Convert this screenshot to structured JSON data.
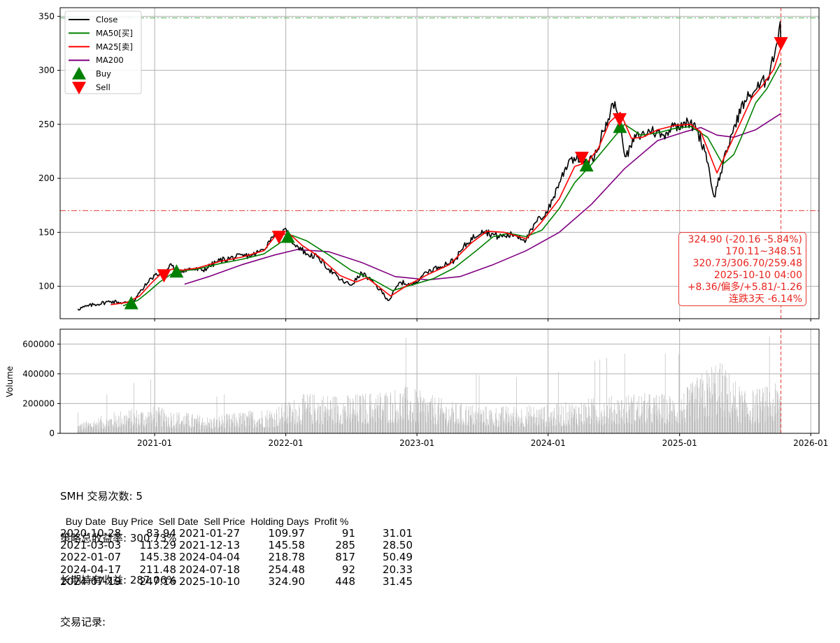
{
  "chart_data": {
    "type": "line",
    "ticker": "SMH",
    "price_panel": {
      "ylim": [
        70,
        358
      ],
      "yticks": [
        100,
        150,
        200,
        250,
        300,
        350
      ],
      "grid": true,
      "legend_placement": "top-left",
      "legend": [
        "Close",
        "MA50[买]",
        "MA25[卖]",
        "MA200",
        "Buy",
        "Sell"
      ],
      "colors": {
        "close": "#000000",
        "ma50": "#008000",
        "ma25": "#ff0000",
        "ma200": "#800080",
        "buy": "#008000",
        "sell": "#ff0000",
        "hline": "#e53935"
      },
      "series": [
        {
          "name": "Close",
          "points": [
            [
              "2020-06-01",
              79
            ],
            [
              "2020-07-15",
              83
            ],
            [
              "2020-09-01",
              86
            ],
            [
              "2020-10-28",
              84
            ],
            [
              "2020-11-20",
              94
            ],
            [
              "2020-12-15",
              104
            ],
            [
              "2021-01-05",
              112
            ],
            [
              "2021-01-27",
              110
            ],
            [
              "2021-02-15",
              121
            ],
            [
              "2021-03-03",
              113
            ],
            [
              "2021-04-01",
              116
            ],
            [
              "2021-05-15",
              115
            ],
            [
              "2021-07-01",
              124
            ],
            [
              "2021-08-15",
              127
            ],
            [
              "2021-10-01",
              129
            ],
            [
              "2021-11-01",
              134
            ],
            [
              "2021-11-15",
              142
            ],
            [
              "2021-12-01",
              150
            ],
            [
              "2021-12-13",
              146
            ],
            [
              "2022-01-03",
              152
            ],
            [
              "2022-01-07",
              145
            ],
            [
              "2022-02-01",
              138
            ],
            [
              "2022-03-01",
              130
            ],
            [
              "2022-04-01",
              127
            ],
            [
              "2022-05-01",
              116
            ],
            [
              "2022-06-01",
              106
            ],
            [
              "2022-07-01",
              101
            ],
            [
              "2022-08-01",
              112
            ],
            [
              "2022-09-01",
              104
            ],
            [
              "2022-10-15",
              87
            ],
            [
              "2022-11-15",
              104
            ],
            [
              "2022-12-20",
              101
            ],
            [
              "2023-01-20",
              112
            ],
            [
              "2023-03-01",
              118
            ],
            [
              "2023-04-15",
              124
            ],
            [
              "2023-05-20",
              140
            ],
            [
              "2023-07-01",
              152
            ],
            [
              "2023-08-15",
              146
            ],
            [
              "2023-10-01",
              148
            ],
            [
              "2023-11-01",
              143
            ],
            [
              "2023-12-01",
              160
            ],
            [
              "2024-01-01",
              170
            ],
            [
              "2024-02-01",
              196
            ],
            [
              "2024-03-01",
              218
            ],
            [
              "2024-04-04",
              219
            ],
            [
              "2024-04-17",
              211
            ],
            [
              "2024-05-15",
              224
            ],
            [
              "2024-06-10",
              252
            ],
            [
              "2024-07-05",
              271
            ],
            [
              "2024-07-18",
              254
            ],
            [
              "2024-07-19",
              247
            ],
            [
              "2024-08-05",
              220
            ],
            [
              "2024-09-01",
              238
            ],
            [
              "2024-10-15",
              244
            ],
            [
              "2024-11-15",
              240
            ],
            [
              "2024-12-15",
              248
            ],
            [
              "2025-01-15",
              252
            ],
            [
              "2025-02-15",
              247
            ],
            [
              "2025-03-15",
              224
            ],
            [
              "2025-04-07",
              183
            ],
            [
              "2025-05-01",
              212
            ],
            [
              "2025-06-01",
              248
            ],
            [
              "2025-07-01",
              272
            ],
            [
              "2025-08-01",
              282
            ],
            [
              "2025-09-01",
              292
            ],
            [
              "2025-09-25",
              320
            ],
            [
              "2025-10-08",
              345
            ],
            [
              "2025-10-10",
              324.9
            ]
          ]
        },
        {
          "name": "MA50[买]",
          "points": [
            [
              "2020-10-05",
              82
            ],
            [
              "2020-11-15",
              87
            ],
            [
              "2020-12-15",
              95
            ],
            [
              "2021-01-15",
              104
            ],
            [
              "2021-02-15",
              111
            ],
            [
              "2021-03-15",
              114
            ],
            [
              "2021-05-01",
              116
            ],
            [
              "2021-07-01",
              121
            ],
            [
              "2021-09-01",
              125
            ],
            [
              "2021-11-01",
              130
            ],
            [
              "2021-12-15",
              140
            ],
            [
              "2022-01-20",
              147
            ],
            [
              "2022-03-01",
              142
            ],
            [
              "2022-05-01",
              129
            ],
            [
              "2022-07-01",
              115
            ],
            [
              "2022-09-01",
              106
            ],
            [
              "2022-10-25",
              96
            ],
            [
              "2022-12-15",
              101
            ],
            [
              "2023-02-15",
              107
            ],
            [
              "2023-04-15",
              117
            ],
            [
              "2023-06-15",
              133
            ],
            [
              "2023-08-01",
              146
            ],
            [
              "2023-09-15",
              149
            ],
            [
              "2023-11-01",
              146
            ],
            [
              "2023-12-15",
              152
            ],
            [
              "2024-02-01",
              172
            ],
            [
              "2024-03-15",
              196
            ],
            [
              "2024-05-01",
              213
            ],
            [
              "2024-06-15",
              231
            ],
            [
              "2024-08-01",
              250
            ],
            [
              "2024-09-15",
              240
            ],
            [
              "2024-11-01",
              242
            ],
            [
              "2024-12-15",
              246
            ],
            [
              "2025-02-01",
              248
            ],
            [
              "2025-03-20",
              238
            ],
            [
              "2025-05-01",
              213
            ],
            [
              "2025-06-01",
              222
            ],
            [
              "2025-07-01",
              245
            ],
            [
              "2025-08-01",
              270
            ],
            [
              "2025-09-01",
              283
            ],
            [
              "2025-10-10",
              307
            ]
          ]
        },
        {
          "name": "MA25[卖]",
          "points": [
            [
              "2020-09-01",
              83
            ],
            [
              "2020-10-15",
              85
            ],
            [
              "2020-11-20",
              91
            ],
            [
              "2020-12-20",
              102
            ],
            [
              "2021-01-20",
              112
            ],
            [
              "2021-02-20",
              116
            ],
            [
              "2021-03-20",
              115
            ],
            [
              "2021-05-01",
              117
            ],
            [
              "2021-07-01",
              123
            ],
            [
              "2021-09-01",
              127
            ],
            [
              "2021-11-01",
              133
            ],
            [
              "2021-12-01",
              146
            ],
            [
              "2022-01-10",
              149
            ],
            [
              "2022-02-15",
              138
            ],
            [
              "2022-04-01",
              128
            ],
            [
              "2022-06-01",
              110
            ],
            [
              "2022-07-15",
              104
            ],
            [
              "2022-08-15",
              108
            ],
            [
              "2022-10-20",
              91
            ],
            [
              "2022-12-01",
              100
            ],
            [
              "2023-02-01",
              111
            ],
            [
              "2023-04-01",
              120
            ],
            [
              "2023-06-01",
              140
            ],
            [
              "2023-07-15",
              151
            ],
            [
              "2023-09-01",
              150
            ],
            [
              "2023-11-01",
              144
            ],
            [
              "2023-12-15",
              160
            ],
            [
              "2024-02-01",
              181
            ],
            [
              "2024-03-15",
              211
            ],
            [
              "2024-04-20",
              215
            ],
            [
              "2024-05-20",
              228
            ],
            [
              "2024-06-20",
              252
            ],
            [
              "2024-07-20",
              261
            ],
            [
              "2024-08-20",
              237
            ],
            [
              "2024-09-20",
              238
            ],
            [
              "2024-11-01",
              245
            ],
            [
              "2024-12-20",
              249
            ],
            [
              "2025-02-01",
              250
            ],
            [
              "2025-03-01",
              243
            ],
            [
              "2025-04-15",
              205
            ],
            [
              "2025-05-20",
              230
            ],
            [
              "2025-06-20",
              252
            ],
            [
              "2025-07-20",
              274
            ],
            [
              "2025-08-20",
              286
            ],
            [
              "2025-09-20",
              301
            ],
            [
              "2025-10-10",
              321
            ]
          ]
        },
        {
          "name": "MA200",
          "points": [
            [
              "2021-03-25",
              102
            ],
            [
              "2021-06-01",
              109
            ],
            [
              "2021-09-01",
              120
            ],
            [
              "2021-12-01",
              129
            ],
            [
              "2022-02-01",
              134
            ],
            [
              "2022-05-01",
              132
            ],
            [
              "2022-08-01",
              122
            ],
            [
              "2022-11-01",
              109
            ],
            [
              "2023-02-01",
              106
            ],
            [
              "2023-05-01",
              109
            ],
            [
              "2023-08-01",
              120
            ],
            [
              "2023-11-01",
              133
            ],
            [
              "2024-02-01",
              150
            ],
            [
              "2024-05-01",
              176
            ],
            [
              "2024-08-01",
              209
            ],
            [
              "2024-11-01",
              235
            ],
            [
              "2025-01-15",
              243
            ],
            [
              "2025-03-01",
              247
            ],
            [
              "2025-04-15",
              240
            ],
            [
              "2025-06-01",
              238
            ],
            [
              "2025-08-01",
              245
            ],
            [
              "2025-10-10",
              260
            ]
          ]
        }
      ],
      "buy_signals": [
        [
          "2020-10-28",
          83.94
        ],
        [
          "2021-03-03",
          113.29
        ],
        [
          "2022-01-07",
          145.38
        ],
        [
          "2024-04-17",
          211.48
        ],
        [
          "2024-07-19",
          247.16
        ]
      ],
      "sell_signals": [
        [
          "2021-01-27",
          109.97
        ],
        [
          "2021-12-13",
          145.58
        ],
        [
          "2024-04-04",
          218.78
        ],
        [
          "2024-07-18",
          254.48
        ],
        [
          "2025-10-10",
          324.9
        ]
      ],
      "hlines": [
        {
          "value": 348.51,
          "color": "#4caf50",
          "style": "dashdot"
        },
        {
          "value": 170.11,
          "color": "#e53935",
          "style": "dashdot"
        }
      ],
      "vline_date": "2025-10-10"
    },
    "volume_panel": {
      "ylabel": "Volume",
      "ylim": [
        0,
        700000
      ],
      "yticks": [
        0,
        200000,
        400000,
        600000
      ],
      "ytick_labels": [
        "0",
        "200000",
        "400000",
        "600000"
      ],
      "color": "#bdbdbd",
      "note_envelope": [
        [
          "2020-06-01",
          60000
        ],
        [
          "2020-10-01",
          140000
        ],
        [
          "2021-01-01",
          160000
        ],
        [
          "2021-06-01",
          100000
        ],
        [
          "2021-12-01",
          160000
        ],
        [
          "2022-03-01",
          240000
        ],
        [
          "2022-07-01",
          230000
        ],
        [
          "2022-12-01",
          280000
        ],
        [
          "2023-04-01",
          190000
        ],
        [
          "2023-08-01",
          160000
        ],
        [
          "2024-01-01",
          170000
        ],
        [
          "2024-05-01",
          210000
        ],
        [
          "2024-09-01",
          240000
        ],
        [
          "2025-01-01",
          230000
        ],
        [
          "2025-04-15",
          450000
        ],
        [
          "2025-07-01",
          250000
        ],
        [
          "2025-10-10",
          300000
        ]
      ]
    },
    "x_axis": {
      "range": [
        "2020-04-13",
        "2026-01-24"
      ],
      "ticks": [
        "2021-01",
        "2022-01",
        "2023-01",
        "2024-01",
        "2025-01",
        "2026-01"
      ]
    }
  },
  "info_box": {
    "lines": [
      "324.90 (-20.16 -5.84%)",
      "170.11~348.51",
      "320.73/306.70/259.48",
      "2025-10-10 04:00",
      "+8.36/偏多/+5.81/-1.26",
      "连跌3天 -6.14%"
    ]
  },
  "stats": {
    "line1": "SMH 交易次数: 5",
    "line2": "策略总收益率: 300.73%",
    "line3": "长期持有收益: 287.06%",
    "line4": "交易记录:"
  },
  "trades": {
    "header": "  Buy Date  Buy Price  Sell Date  Sell Price  Holding Days  Profit %",
    "rows": [
      {
        "buy_date": "2020-10-28",
        "buy_price": "83.94",
        "sell_date": "2021-01-27",
        "sell_price": "109.97",
        "holding_days": "91",
        "profit": "31.01"
      },
      {
        "buy_date": "2021-03-03",
        "buy_price": "113.29",
        "sell_date": "2021-12-13",
        "sell_price": "145.58",
        "holding_days": "285",
        "profit": "28.50"
      },
      {
        "buy_date": "2022-01-07",
        "buy_price": "145.38",
        "sell_date": "2024-04-04",
        "sell_price": "218.78",
        "holding_days": "817",
        "profit": "50.49"
      },
      {
        "buy_date": "2024-04-17",
        "buy_price": "211.48",
        "sell_date": "2024-07-18",
        "sell_price": "254.48",
        "holding_days": "92",
        "profit": "20.33"
      },
      {
        "buy_date": "2024-07-19",
        "buy_price": "247.16",
        "sell_date": "2025-10-10",
        "sell_price": "324.90",
        "holding_days": "448",
        "profit": "31.45"
      }
    ]
  }
}
